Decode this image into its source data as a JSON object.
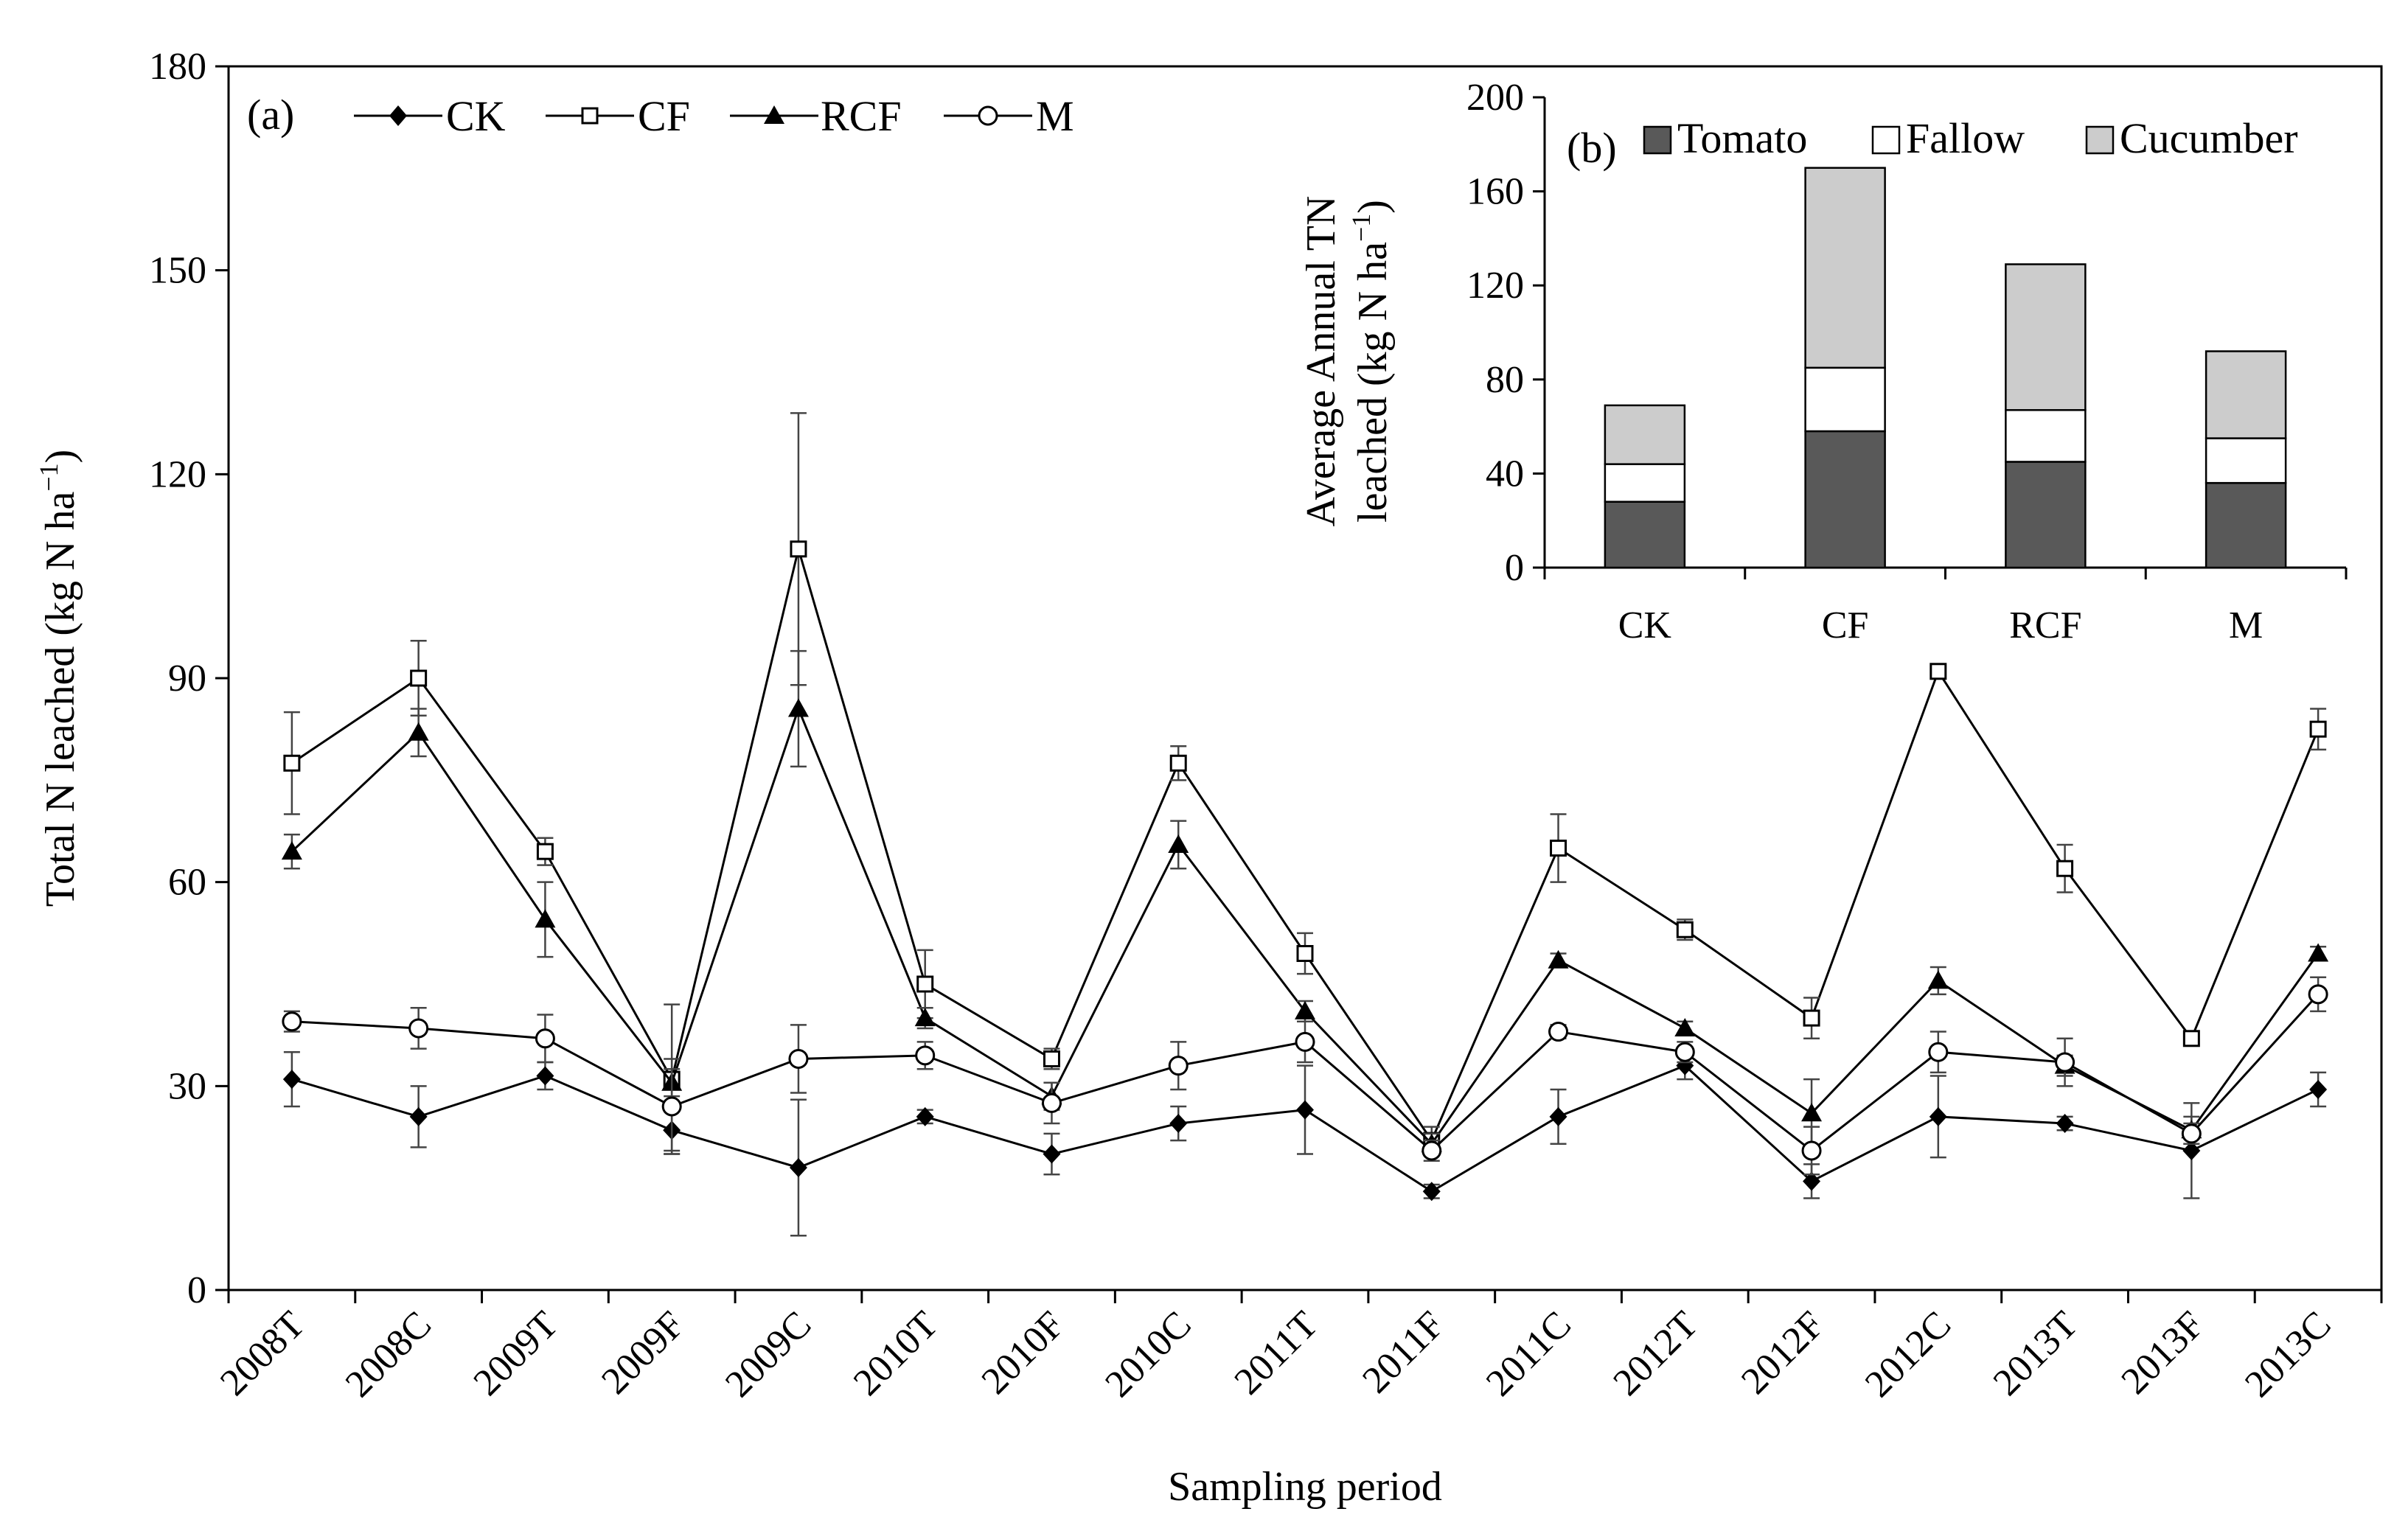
{
  "chart_data": [
    {
      "id": "panel-a",
      "type": "line",
      "panel_label": "(a)",
      "xlabel": "Sampling period",
      "ylabel_main": "Total N leached (kg N ha",
      "ylabel_sup": "−1",
      "ylabel_close": ")",
      "ylim": [
        0,
        180
      ],
      "yticks": [
        "0",
        "30",
        "60",
        "90",
        "120",
        "150",
        "180"
      ],
      "categories": [
        "2008T",
        "2008C",
        "2009T",
        "2009F",
        "2009C",
        "2010T",
        "2010F",
        "2010C",
        "2011T",
        "2011F",
        "2011C",
        "2012T",
        "2012F",
        "2012C",
        "2013T",
        "2013F",
        "2013C"
      ],
      "legend_position": "top-left",
      "series": [
        {
          "name": "CK",
          "marker": "diamond",
          "values": [
            31,
            25.5,
            31.5,
            23.5,
            18,
            25.5,
            20,
            24.5,
            26.5,
            14.5,
            25.5,
            33,
            16,
            25.5,
            24.5,
            20.5,
            29.5
          ],
          "errors": [
            4,
            4.5,
            2,
            3,
            10,
            1,
            3,
            2.5,
            6.5,
            1,
            4,
            2,
            2.5,
            6,
            1,
            7,
            2.5
          ]
        },
        {
          "name": "CF",
          "marker": "open-square",
          "values": [
            77.5,
            90,
            64.5,
            31,
            109,
            45,
            34,
            77.5,
            49.5,
            22,
            65,
            53,
            40,
            91,
            62,
            37,
            82.5
          ],
          "errors": [
            7.5,
            5.5,
            2,
            11,
            20,
            5,
            1.5,
            2.5,
            3,
            2,
            5,
            1.5,
            3,
            1,
            3.5,
            1,
            3
          ]
        },
        {
          "name": "RCF",
          "marker": "triangle",
          "values": [
            64.5,
            82,
            54.5,
            30.5,
            85.5,
            40,
            28.5,
            65.5,
            41,
            21.5,
            48.5,
            38.5,
            26,
            45.5,
            33,
            23.5,
            49.5
          ],
          "errors": [
            2.5,
            3.5,
            5.5,
            2,
            8.5,
            1.5,
            2,
            3.5,
            1.5,
            1.5,
            1,
            1,
            5,
            2,
            1.5,
            2,
            1
          ]
        },
        {
          "name": "M",
          "marker": "open-circle",
          "values": [
            39.5,
            38.5,
            37,
            27,
            34,
            34.5,
            27.5,
            33,
            36.5,
            20.5,
            38,
            35,
            20.5,
            35,
            33.5,
            23,
            43.5
          ],
          "errors": [
            1.5,
            3,
            3.5,
            7,
            5,
            2,
            3,
            3.5,
            3,
            1.5,
            1,
            1.5,
            3.5,
            3,
            3.5,
            1.5,
            2.5
          ]
        }
      ]
    },
    {
      "id": "panel-b",
      "type": "bar",
      "stacked": true,
      "panel_label": "(b)",
      "ylabel_line1": "Average Annual TN",
      "ylabel_line2_main": "leached (kg N ha",
      "ylabel_line2_sup": "−1",
      "ylabel_line2_close": ")",
      "ylim": [
        0,
        200
      ],
      "yticks": [
        "0",
        "40",
        "80",
        "120",
        "160",
        "200"
      ],
      "categories": [
        "CK",
        "CF",
        "RCF",
        "M"
      ],
      "legend_position": "top",
      "series": [
        {
          "name": "Tomato",
          "color": "#595959",
          "values": [
            28,
            58,
            45,
            36
          ]
        },
        {
          "name": "Fallow",
          "color": "#ffffff",
          "values": [
            16,
            27,
            22,
            19
          ]
        },
        {
          "name": "Cucumber",
          "color": "#cccccc",
          "values": [
            25,
            85,
            62,
            37
          ]
        }
      ]
    }
  ]
}
